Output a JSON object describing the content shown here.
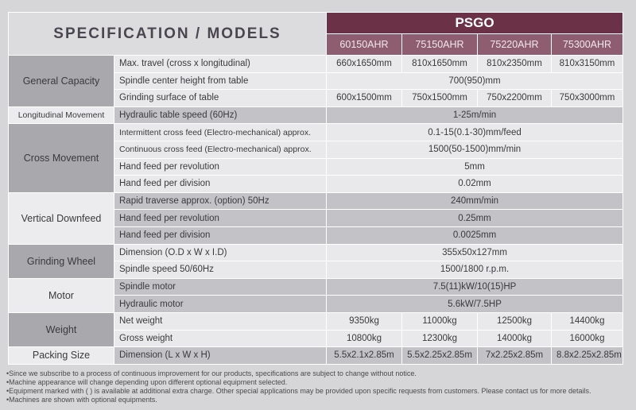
{
  "header": {
    "title": "SPECIFICATION / MODELS",
    "brand": "PSGO",
    "models": [
      "60150AHR",
      "75150AHR",
      "75220AHR",
      "75300AHR"
    ]
  },
  "groups": [
    {
      "name": "General Capacity",
      "shade": "d",
      "rows": [
        {
          "param": "Max. travel (cross x longitudinal)",
          "values": [
            "660x1650mm",
            "810x1650mm",
            "810x2350mm",
            "810x3150mm"
          ]
        },
        {
          "param": "Spindle center height from table",
          "values": [
            "700(950)mm"
          ]
        },
        {
          "param": "Grinding surface of table",
          "values": [
            "600x1500mm",
            "750x1500mm",
            "750x2200mm",
            "750x3000mm"
          ]
        }
      ]
    },
    {
      "name": "Longitudinal Movement",
      "shade": "l",
      "small": true,
      "rows": [
        {
          "param": "Hydraulic table speed (60Hz)",
          "values": [
            "1-25m/min"
          ]
        }
      ]
    },
    {
      "name": "Cross Movement",
      "shade": "d",
      "rows": [
        {
          "param": "Intermittent  cross feed (Electro-mechanical) approx.",
          "small": true,
          "values": [
            "0.1-15(0.1-30)mm/feed"
          ]
        },
        {
          "param": "Continuous cross feed (Electro-mechanical) approx.",
          "small": true,
          "values": [
            "1500(50-1500)mm/min"
          ]
        },
        {
          "param": "Hand feed per revolution",
          "values": [
            "5mm"
          ]
        },
        {
          "param": "Hand feed per division",
          "values": [
            "0.02mm"
          ]
        }
      ]
    },
    {
      "name": "Vertical Downfeed",
      "shade": "l",
      "rows": [
        {
          "param": "Rapid traverse approx. (option) 50Hz",
          "values": [
            "240mm/min"
          ]
        },
        {
          "param": "Hand feed per revolution",
          "values": [
            "0.25mm"
          ]
        },
        {
          "param": "Hand feed per division",
          "values": [
            "0.0025mm"
          ]
        }
      ]
    },
    {
      "name": "Grinding Wheel",
      "shade": "d",
      "rows": [
        {
          "param": "Dimension (O.D x W x I.D)",
          "values": [
            "355x50x127mm"
          ]
        },
        {
          "param": "Spindle speed 50/60Hz",
          "values": [
            "1500/1800 r.p.m."
          ]
        }
      ]
    },
    {
      "name": "Motor",
      "shade": "l",
      "rows": [
        {
          "param": "Spindle motor",
          "values": [
            "7.5(11)kW/10(15)HP"
          ]
        },
        {
          "param": "Hydraulic motor",
          "values": [
            "5.6kW/7.5HP"
          ]
        }
      ]
    },
    {
      "name": "Weight",
      "shade": "d",
      "rows": [
        {
          "param": "Net weight",
          "values": [
            "9350kg",
            "11000kg",
            "12500kg",
            "14400kg"
          ]
        },
        {
          "param": "Gross weight",
          "values": [
            "10800kg",
            "12300kg",
            "14000kg",
            "16000kg"
          ]
        }
      ]
    },
    {
      "name": "Packing Size",
      "shade": "l",
      "rows": [
        {
          "param": "Dimension (L x W x H)",
          "values": [
            "5.5x2.1x2.85m",
            "5.5x2.25x2.85m",
            "7x2.25x2.85m",
            "8.8x2.25x2.85m"
          ]
        }
      ]
    }
  ],
  "notes": [
    "Since we subscribe to a process of continuous improvement for our products, specifications are subject to change without notice.",
    "Machine appearance will change depending upon different optional equipment selected.",
    "Equipment marked with ( ) is available at additional extra charge. Other special applications may be provided upon specific requests from customers. Please contact us for more details.",
    "Machines are shown with optional equipments."
  ]
}
